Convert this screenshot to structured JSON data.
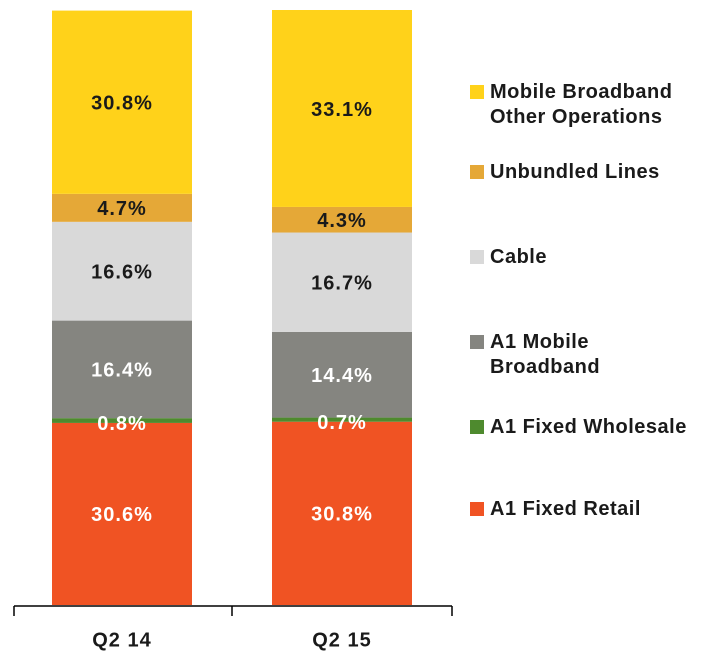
{
  "chart_data": {
    "type": "stacked_bar",
    "categories": [
      "Q2 14",
      "Q2 15"
    ],
    "ylim": [
      0,
      100
    ],
    "series": [
      {
        "name": "A1 Fixed Retail",
        "color": "#f05323",
        "label_color": "#ffffff",
        "values": [
          30.6,
          30.8
        ],
        "value_labels": [
          "30.6%",
          "30.8%"
        ]
      },
      {
        "name": "A1 Fixed Wholesale",
        "color": "#4e8a2e",
        "label_color": "#ffffff",
        "values": [
          0.8,
          0.7
        ],
        "value_labels": [
          "0.8%",
          "0.7%"
        ]
      },
      {
        "name": "A1 Mobile Broadband",
        "color": "#858580",
        "label_color": "#ffffff",
        "values": [
          16.4,
          14.4
        ],
        "value_labels": [
          "16.4%",
          "14.4%"
        ]
      },
      {
        "name": "Cable",
        "color": "#d9d9d9",
        "label_color": "#1a1a1a",
        "values": [
          16.6,
          16.7
        ],
        "value_labels": [
          "16.6%",
          "16.7%"
        ]
      },
      {
        "name": "Unbundled Lines",
        "color": "#e5a837",
        "label_color": "#1a1a1a",
        "values": [
          4.7,
          4.3
        ],
        "value_labels": [
          "4.7%",
          "4.3%"
        ]
      },
      {
        "name": "Mobile Broadband Other Operations",
        "color": "#ffd21a",
        "label_color": "#1a1a1a",
        "values": [
          30.8,
          33.1
        ],
        "value_labels": [
          "30.8%",
          "33.1%"
        ]
      }
    ]
  }
}
